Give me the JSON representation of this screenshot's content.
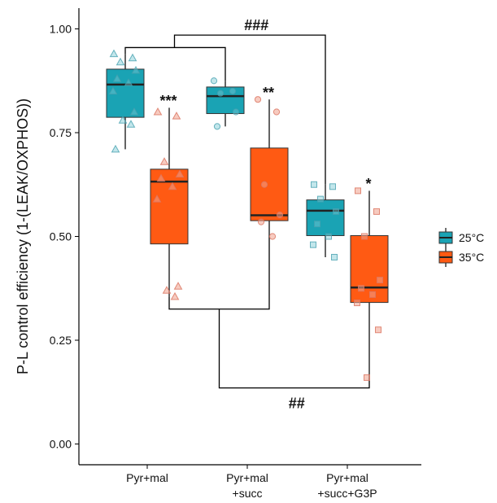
{
  "chart_data": {
    "type": "boxplot",
    "title": "",
    "xlabel": "",
    "ylabel": "P-L control efficiency (1-(LEAK/OXPHOS))",
    "ylim": [
      -0.05,
      1.05
    ],
    "yticks": [
      0.0,
      0.25,
      0.5,
      0.75,
      1.0
    ],
    "ytick_labels": [
      "0.00",
      "0.25",
      "0.50",
      "0.75",
      "1.00"
    ],
    "grid": false,
    "legend_position": "right",
    "categories": [
      {
        "lines": [
          "Pyr+mal"
        ]
      },
      {
        "lines": [
          "Pyr+mal",
          "+succ"
        ]
      },
      {
        "lines": [
          "Pyr+mal",
          "+succ+G3P"
        ]
      }
    ],
    "series": [
      {
        "name": "25°C",
        "color": "#1AA3B4",
        "boxes": [
          {
            "q1": 0.787,
            "median": 0.866,
            "q3": 0.903,
            "whisker_low": 0.71,
            "whisker_high": 0.94,
            "points": [
              0.94,
              0.93,
              0.92,
              0.9,
              0.88,
              0.87,
              0.85,
              0.8,
              0.78,
              0.77,
              0.71
            ],
            "marker": "triangle"
          },
          {
            "q1": 0.796,
            "median": 0.838,
            "q3": 0.86,
            "whisker_low": 0.765,
            "whisker_high": 0.875,
            "points": [
              0.875,
              0.85,
              0.845,
              0.8,
              0.765
            ],
            "marker": "circle"
          },
          {
            "q1": 0.502,
            "median": 0.562,
            "q3": 0.588,
            "whisker_low": 0.45,
            "whisker_high": 0.625,
            "points": [
              0.625,
              0.62,
              0.59,
              0.56,
              0.53,
              0.5,
              0.48,
              0.45
            ],
            "marker": "square"
          }
        ]
      },
      {
        "name": "35°C",
        "color": "#FF5A13",
        "boxes": [
          {
            "q1": 0.482,
            "median": 0.632,
            "q3": 0.662,
            "whisker_low": 0.355,
            "whisker_high": 0.81,
            "points": [
              0.8,
              0.79,
              0.68,
              0.65,
              0.64,
              0.62,
              0.59,
              0.38,
              0.37,
              0.355
            ],
            "marker": "triangle"
          },
          {
            "q1": 0.538,
            "median": 0.551,
            "q3": 0.713,
            "whisker_low": 0.497,
            "whisker_high": 0.83,
            "points": [
              0.83,
              0.8,
              0.625,
              0.552,
              0.535,
              0.5
            ],
            "marker": "circle"
          },
          {
            "q1": 0.341,
            "median": 0.377,
            "q3": 0.502,
            "whisker_low": 0.16,
            "whisker_high": 0.61,
            "points": [
              0.61,
              0.56,
              0.5,
              0.395,
              0.375,
              0.36,
              0.34,
              0.275,
              0.16
            ],
            "marker": "square"
          }
        ]
      }
    ],
    "annotations": [
      {
        "text": "***",
        "category": 0,
        "series": 1,
        "y": 0.83
      },
      {
        "text": "**",
        "category": 1,
        "series": 1,
        "y": 0.85
      },
      {
        "text": "*",
        "category": 2,
        "series": 1,
        "y": 0.63
      }
    ],
    "brackets": [
      {
        "text": "###",
        "from_category": 0,
        "from_series": 0,
        "to_category": 2,
        "to_series": 0,
        "y": 0.985,
        "direction": "up",
        "from_y": 0.94,
        "to_y": 0.63
      },
      {
        "text": "##",
        "from_category": 0,
        "from_series": 1,
        "to_category": 2,
        "to_series": 1,
        "y": 0.135,
        "direction": "down",
        "outer": true
      },
      {
        "text": "",
        "from_category": 0,
        "from_series": 1,
        "to_category": 1,
        "to_series": 0,
        "y": 0.325,
        "direction": "down",
        "inner": true
      }
    ]
  }
}
